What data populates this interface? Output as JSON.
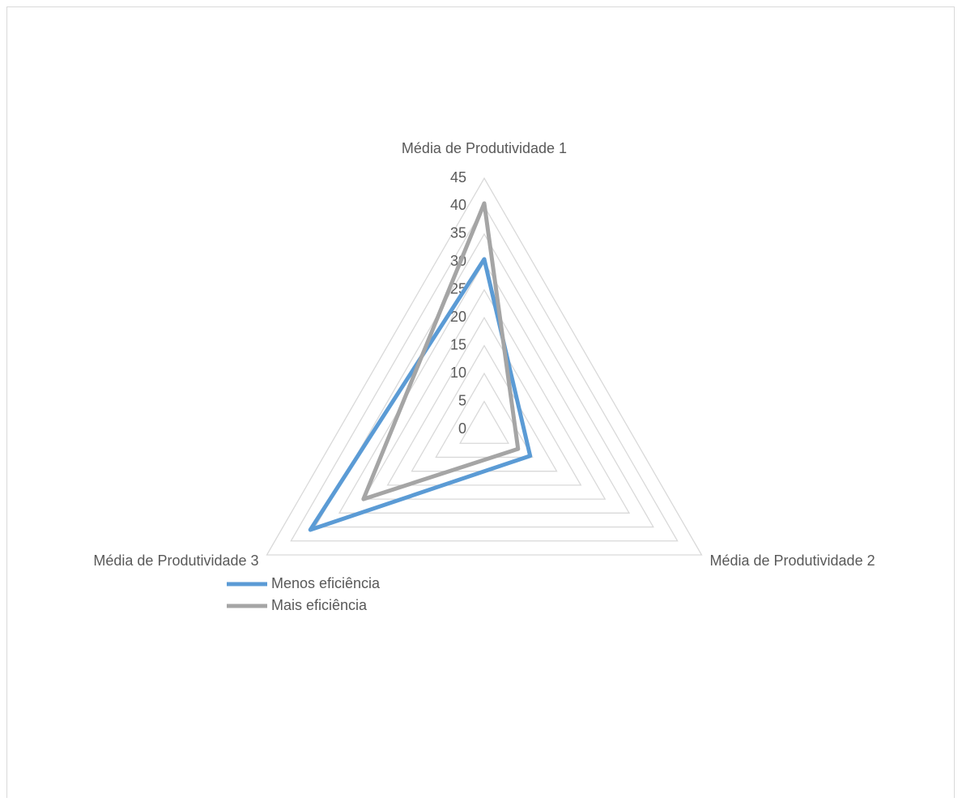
{
  "chart_data": {
    "type": "radar",
    "categories": [
      "Média de Produtividade 1",
      "Média de Produtividade 2",
      "Média de Produtividade 3"
    ],
    "series": [
      {
        "name": "Menos eficiência",
        "color": "#5b9bd5",
        "values": [
          30.5,
          9.5,
          36
        ]
      },
      {
        "name": "Mais eficiência",
        "color": "#a5a5a5",
        "values": [
          40.5,
          7,
          25
        ]
      }
    ],
    "rlim": [
      0,
      45
    ],
    "rticks": [
      0,
      5,
      10,
      15,
      20,
      25,
      30,
      35,
      40,
      45
    ],
    "grid": true
  }
}
